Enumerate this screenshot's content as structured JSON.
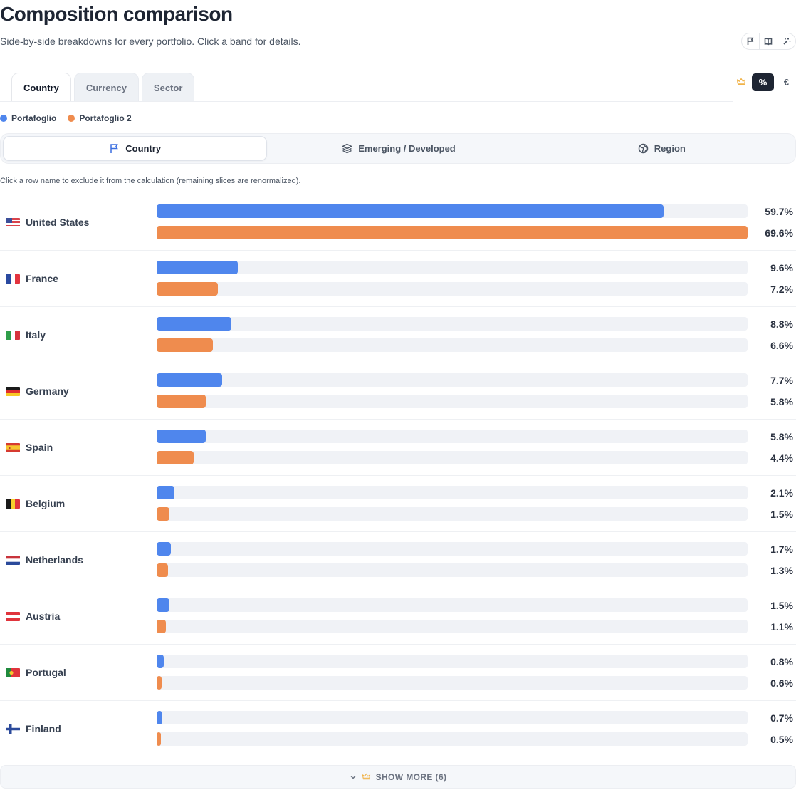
{
  "header": {
    "title": "Composition comparison",
    "subtitle": "Side-by-side breakdowns for every portfolio. Click a band for details."
  },
  "toolbar": {
    "icons": [
      "flag-icon",
      "book-icon",
      "sparkle-icon"
    ]
  },
  "tabs": [
    {
      "label": "Country",
      "active": true
    },
    {
      "label": "Currency",
      "active": false
    },
    {
      "label": "Sector",
      "active": false
    }
  ],
  "unit_toggle": {
    "options": [
      "%",
      "€"
    ],
    "selected": "%"
  },
  "legend": [
    {
      "name": "Portafoglio",
      "color": "#4f86ed"
    },
    {
      "name": "Portafoglio 2",
      "color": "#ef8c4e"
    }
  ],
  "segments": [
    {
      "label": "Country",
      "icon": "flag-icon",
      "active": true
    },
    {
      "label": "Emerging / Developed",
      "icon": "layers-icon",
      "active": false
    },
    {
      "label": "Region",
      "icon": "globe-icon",
      "active": false
    }
  ],
  "hint": "Click a row name to exclude it from the calculation (remaining slices are renormalized).",
  "rows": [
    {
      "country": "United States",
      "flag": "us-flag-icon",
      "v1": 59.7,
      "v2": 69.6,
      "label1": "59.7%",
      "label2": "69.6%"
    },
    {
      "country": "France",
      "flag": "fr-flag-icon",
      "v1": 9.6,
      "v2": 7.2,
      "label1": "9.6%",
      "label2": "7.2%"
    },
    {
      "country": "Italy",
      "flag": "it-flag-icon",
      "v1": 8.8,
      "v2": 6.6,
      "label1": "8.8%",
      "label2": "6.6%"
    },
    {
      "country": "Germany",
      "flag": "de-flag-icon",
      "v1": 7.7,
      "v2": 5.8,
      "label1": "7.7%",
      "label2": "5.8%"
    },
    {
      "country": "Spain",
      "flag": "es-flag-icon",
      "v1": 5.8,
      "v2": 4.4,
      "label1": "5.8%",
      "label2": "4.4%"
    },
    {
      "country": "Belgium",
      "flag": "be-flag-icon",
      "v1": 2.1,
      "v2": 1.5,
      "label1": "2.1%",
      "label2": "1.5%"
    },
    {
      "country": "Netherlands",
      "flag": "nl-flag-icon",
      "v1": 1.7,
      "v2": 1.3,
      "label1": "1.7%",
      "label2": "1.3%"
    },
    {
      "country": "Austria",
      "flag": "at-flag-icon",
      "v1": 1.5,
      "v2": 1.1,
      "label1": "1.5%",
      "label2": "1.1%"
    },
    {
      "country": "Portugal",
      "flag": "pt-flag-icon",
      "v1": 0.8,
      "v2": 0.6,
      "label1": "0.8%",
      "label2": "0.6%"
    },
    {
      "country": "Finland",
      "flag": "fi-flag-icon",
      "v1": 0.7,
      "v2": 0.5,
      "label1": "0.7%",
      "label2": "0.5%"
    }
  ],
  "show_more": {
    "label": "SHOW MORE (6)"
  }
}
